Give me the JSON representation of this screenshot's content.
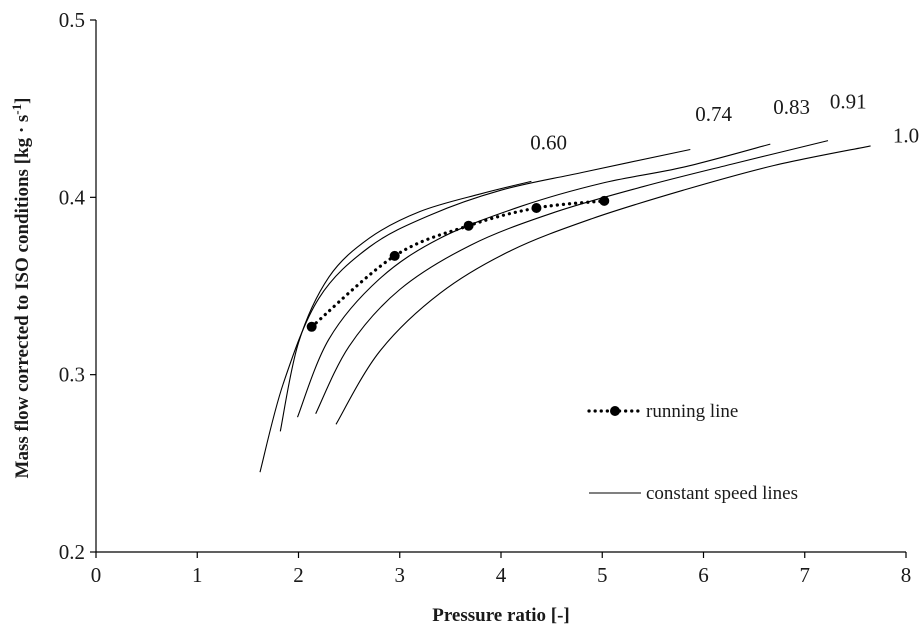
{
  "chart_data": {
    "type": "line",
    "xlabel": "Pressure ratio [-]",
    "ylabel": "Mass flow corrected to ISO conditions [kg · s",
    "ylabel_sup": "-1",
    "ylabel_end": "]",
    "xlim": [
      0,
      8
    ],
    "ylim": [
      0.2,
      0.5
    ],
    "x_ticks": [
      0,
      1,
      2,
      3,
      4,
      5,
      6,
      7,
      8
    ],
    "x_tick_labels": [
      "0",
      "1",
      "2",
      "3",
      "4",
      "5",
      "6",
      "7",
      "8"
    ],
    "y_ticks": [
      0.2,
      0.3,
      0.4,
      0.5
    ],
    "y_tick_labels": [
      "0.2",
      "0.3",
      "0.4",
      "0.5"
    ],
    "grid": false,
    "legend_placement": "lower-right",
    "legend": [
      {
        "label": "running line",
        "style": "dotted-with-markers"
      },
      {
        "label": "constant speed lines",
        "style": "solid"
      }
    ],
    "constant_speed_lines": [
      {
        "label": "0.60",
        "x": [
          1.82,
          2.0,
          2.3,
          2.7,
          3.2,
          3.8,
          4.3
        ],
        "y": [
          0.268,
          0.318,
          0.355,
          0.377,
          0.392,
          0.402,
          0.409
        ]
      },
      {
        "label": "0.74",
        "x": [
          1.62,
          1.85,
          2.2,
          2.7,
          3.3,
          4.0,
          4.8,
          5.87
        ],
        "y": [
          0.245,
          0.295,
          0.343,
          0.372,
          0.39,
          0.404,
          0.414,
          0.427
        ]
      },
      {
        "label": "0.83",
        "x": [
          1.99,
          2.3,
          2.8,
          3.4,
          4.2,
          5.0,
          5.8,
          6.66
        ],
        "y": [
          0.276,
          0.32,
          0.354,
          0.377,
          0.395,
          0.408,
          0.417,
          0.43
        ]
      },
      {
        "label": "0.91",
        "x": [
          2.17,
          2.5,
          3.0,
          3.7,
          4.5,
          5.4,
          6.3,
          7.23
        ],
        "y": [
          0.278,
          0.316,
          0.348,
          0.373,
          0.391,
          0.406,
          0.419,
          0.432
        ]
      },
      {
        "label": "1.0",
        "x": [
          2.37,
          2.8,
          3.4,
          4.1,
          4.9,
          5.8,
          6.7,
          7.65
        ],
        "y": [
          0.272,
          0.313,
          0.346,
          0.37,
          0.388,
          0.404,
          0.418,
          0.429
        ]
      }
    ],
    "running_line": {
      "label": "running line",
      "x": [
        2.13,
        2.95,
        3.68,
        4.35,
        5.02
      ],
      "y": [
        0.327,
        0.367,
        0.384,
        0.394,
        0.398
      ]
    },
    "speed_label_positions": [
      {
        "label": "0.60",
        "x": 4.47,
        "y": 0.427
      },
      {
        "label": "0.74",
        "x": 6.1,
        "y": 0.443
      },
      {
        "label": "0.83",
        "x": 6.87,
        "y": 0.447
      },
      {
        "label": "0.91",
        "x": 7.43,
        "y": 0.45
      },
      {
        "label": "1.0",
        "x": 8.0,
        "y": 0.431
      }
    ]
  }
}
